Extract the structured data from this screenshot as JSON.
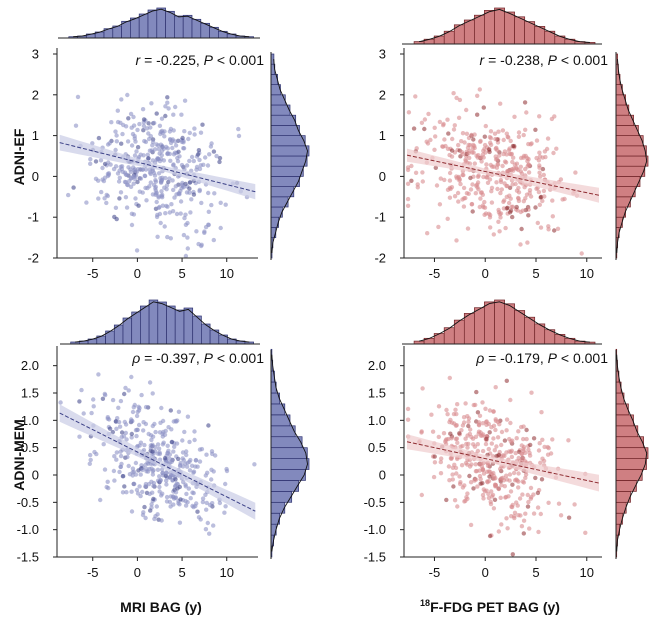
{
  "figure": {
    "row_labels": [
      "ADNI-EF",
      "ADNI-MEM"
    ],
    "column_xlabels": [
      "MRI BAG (y)",
      "F-FDG PET BAG (y)"
    ],
    "pet_label_superscript": "18",
    "colors": {
      "mri_point": "#8d93c7",
      "mri_line": "#3a3f86",
      "mri_band": "#c9cce6",
      "mri_hist": "#8289bd",
      "mri_hist_edge": "#2e3270",
      "pet_point": "#d88c8f",
      "pet_line": "#8e2b30",
      "pet_band": "#f0cccd",
      "pet_hist": "#cf7f82",
      "pet_hist_edge": "#6e2226"
    }
  },
  "chart_data": [
    {
      "type": "scatter",
      "panel": "ADNI-EF vs MRI BAG",
      "color_scheme": "mri",
      "ylabel": "ADNI-EF",
      "xlim": [
        -9,
        13.5
      ],
      "xticks": [
        -5,
        0,
        5,
        10
      ],
      "xtick_labels": [
        "-5",
        "0",
        "5",
        "10"
      ],
      "ylim": [
        -2,
        3
      ],
      "yticks": [
        -2,
        -1,
        0,
        1,
        2,
        3
      ],
      "ytick_labels": [
        "-2",
        "-1",
        "0",
        "1",
        "2",
        "3"
      ],
      "stat_symbol": "r",
      "stat_value": "= -0.225,",
      "p_symbol": "P",
      "p_value": "< 0.001",
      "regression": {
        "slope": -0.055,
        "intercept": 0.35
      },
      "point_cloud": {
        "n": 420,
        "x_mean": 2.5,
        "x_sd": 3.8,
        "y_sd": 0.72,
        "seed": 11
      },
      "top_hist": {
        "bin_start": -8,
        "bin_width": 1,
        "counts": [
          2,
          3,
          6,
          9,
          14,
          18,
          25,
          30,
          36,
          42,
          45,
          40,
          33,
          34,
          28,
          22,
          16,
          10,
          6,
          3,
          2
        ]
      },
      "side_hist": {
        "bin_start": -2,
        "bin_width": 0.25,
        "counts": [
          1,
          2,
          5,
          8,
          12,
          18,
          24,
          30,
          34,
          38,
          40,
          36,
          30,
          26,
          20,
          15,
          10,
          7,
          4,
          3
        ]
      }
    },
    {
      "type": "scatter",
      "panel": "ADNI-EF vs 18F-FDG PET BAG",
      "color_scheme": "pet",
      "ylabel": "ADNI-EF",
      "xlim": [
        -8,
        11.5
      ],
      "xticks": [
        -5,
        0,
        5,
        10
      ],
      "xtick_labels": [
        "-5",
        "0",
        "5",
        "10"
      ],
      "ylim": [
        -2,
        3
      ],
      "yticks": [
        -2,
        -1,
        0,
        1,
        2,
        3
      ],
      "ytick_labels": [
        "-2",
        "-1",
        "0",
        "1",
        "2",
        "3"
      ],
      "stat_symbol": "r",
      "stat_value": "= -0.238,",
      "p_symbol": "P",
      "p_value": "< 0.001",
      "regression": {
        "slope": -0.052,
        "intercept": 0.12
      },
      "point_cloud": {
        "n": 420,
        "x_mean": 0.8,
        "x_sd": 3.4,
        "y_sd": 0.72,
        "seed": 23
      },
      "top_hist": {
        "bin_start": -7,
        "bin_width": 1,
        "counts": [
          3,
          6,
          10,
          16,
          24,
          30,
          36,
          42,
          45,
          40,
          34,
          28,
          22,
          16,
          10,
          6,
          3,
          2
        ]
      },
      "side_hist": {
        "bin_start": -2,
        "bin_width": 0.25,
        "counts": [
          1,
          2,
          4,
          8,
          12,
          18,
          24,
          30,
          36,
          40,
          38,
          34,
          28,
          22,
          16,
          12,
          8,
          5,
          3,
          2
        ]
      }
    },
    {
      "type": "scatter",
      "panel": "ADNI-MEM vs MRI BAG",
      "color_scheme": "mri",
      "ylabel": "ADNI-MEM",
      "xlim": [
        -9,
        13.5
      ],
      "xticks": [
        -5,
        0,
        5,
        10
      ],
      "xtick_labels": [
        "-5",
        "0",
        "5",
        "10"
      ],
      "ylim": [
        -1.5,
        2.25
      ],
      "yticks": [
        -1.5,
        -1,
        -0.5,
        0,
        0.5,
        1,
        1.5,
        2
      ],
      "ytick_labels": [
        "-1.5",
        "-1.0",
        "-0.5",
        "0",
        "0.5",
        "1.0",
        "1.5",
        "2.0"
      ],
      "stat_symbol": "ρ",
      "stat_value": "= -0.397,",
      "p_symbol": "P",
      "p_value": "< 0.001",
      "regression": {
        "slope": -0.082,
        "intercept": 0.42
      },
      "point_cloud": {
        "n": 420,
        "x_mean": 2.5,
        "x_sd": 3.6,
        "y_sd": 0.5,
        "seed": 37
      },
      "top_hist": {
        "bin_start": -8,
        "bin_width": 1,
        "counts": [
          2,
          3,
          5,
          8,
          13,
          19,
          26,
          32,
          38,
          44,
          42,
          38,
          34,
          36,
          28,
          20,
          14,
          9,
          5,
          3,
          2
        ]
      },
      "side_hist": {
        "bin_start": -1.5,
        "bin_width": 0.2,
        "counts": [
          1,
          3,
          6,
          10,
          16,
          24,
          32,
          40,
          44,
          42,
          36,
          28,
          22,
          16,
          10,
          6,
          4,
          2,
          1
        ]
      }
    },
    {
      "type": "scatter",
      "panel": "ADNI-MEM vs 18F-FDG PET BAG",
      "color_scheme": "pet",
      "ylabel": "ADNI-MEM",
      "xlim": [
        -8,
        11.5
      ],
      "xticks": [
        -5,
        0,
        5,
        10
      ],
      "xtick_labels": [
        "-5",
        "0",
        "5",
        "10"
      ],
      "ylim": [
        -1.5,
        2.25
      ],
      "yticks": [
        -1.5,
        -1,
        -0.5,
        0,
        0.5,
        1,
        1.5,
        2
      ],
      "ytick_labels": [
        "-1.5",
        "-1.0",
        "-0.5",
        "0",
        "0.5",
        "1.0",
        "1.5",
        "2.0"
      ],
      "stat_symbol": "ρ",
      "stat_value": "= -0.179,",
      "p_symbol": "P",
      "p_value": "< 0.001",
      "regression": {
        "slope": -0.04,
        "intercept": 0.3
      },
      "point_cloud": {
        "n": 420,
        "x_mean": 0.8,
        "x_sd": 3.3,
        "y_sd": 0.55,
        "seed": 53
      },
      "top_hist": {
        "bin_start": -7,
        "bin_width": 1,
        "counts": [
          3,
          6,
          11,
          17,
          25,
          32,
          38,
          44,
          46,
          42,
          35,
          28,
          21,
          15,
          10,
          6,
          3,
          2
        ]
      },
      "side_hist": {
        "bin_start": -1.5,
        "bin_width": 0.2,
        "counts": [
          1,
          2,
          5,
          9,
          14,
          20,
          28,
          36,
          42,
          44,
          38,
          30,
          24,
          17,
          11,
          7,
          4,
          2,
          1
        ]
      }
    }
  ]
}
